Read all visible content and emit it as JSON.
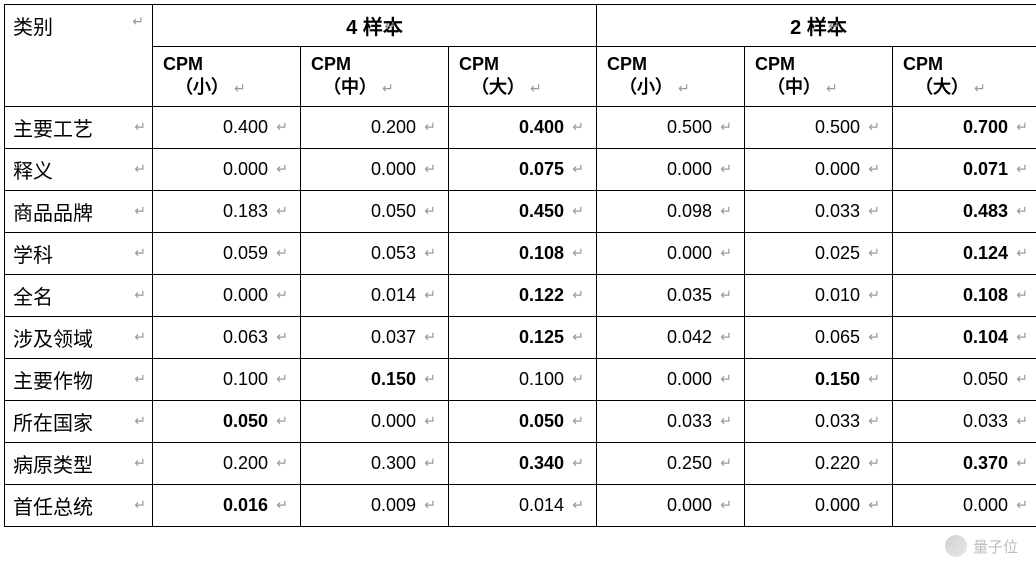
{
  "table": {
    "category_label": "类别",
    "return_glyph": "↵",
    "groups": [
      {
        "label": "4 样本",
        "columns": [
          "CPM（小）",
          "CPM（中）",
          "CPM（大）"
        ]
      },
      {
        "label": "2 样本",
        "columns": [
          "CPM（小）",
          "CPM（中）",
          "CPM（大）"
        ]
      }
    ],
    "sub_line1": "CPM",
    "sub_line2": [
      "（小）",
      "（中）",
      "（大）",
      "（小）",
      "（中）",
      "（大）"
    ],
    "rows": [
      {
        "label": "主要工艺",
        "values": [
          "0.400",
          "0.200",
          "0.400",
          "0.500",
          "0.500",
          "0.700"
        ],
        "bold": [
          false,
          false,
          true,
          false,
          false,
          true
        ]
      },
      {
        "label": "释义",
        "values": [
          "0.000",
          "0.000",
          "0.075",
          "0.000",
          "0.000",
          "0.071"
        ],
        "bold": [
          false,
          false,
          true,
          false,
          false,
          true
        ]
      },
      {
        "label": "商品品牌",
        "values": [
          "0.183",
          "0.050",
          "0.450",
          "0.098",
          "0.033",
          "0.483"
        ],
        "bold": [
          false,
          false,
          true,
          false,
          false,
          true
        ]
      },
      {
        "label": "学科",
        "values": [
          "0.059",
          "0.053",
          "0.108",
          "0.000",
          "0.025",
          "0.124"
        ],
        "bold": [
          false,
          false,
          true,
          false,
          false,
          true
        ]
      },
      {
        "label": "全名",
        "values": [
          "0.000",
          "0.014",
          "0.122",
          "0.035",
          "0.010",
          "0.108"
        ],
        "bold": [
          false,
          false,
          true,
          false,
          false,
          true
        ]
      },
      {
        "label": "涉及领域",
        "values": [
          "0.063",
          "0.037",
          "0.125",
          "0.042",
          "0.065",
          "0.104"
        ],
        "bold": [
          false,
          false,
          true,
          false,
          false,
          true
        ]
      },
      {
        "label": "主要作物",
        "values": [
          "0.100",
          "0.150",
          "0.100",
          "0.000",
          "0.150",
          "0.050"
        ],
        "bold": [
          false,
          true,
          false,
          false,
          true,
          false
        ]
      },
      {
        "label": "所在国家",
        "values": [
          "0.050",
          "0.000",
          "0.050",
          "0.033",
          "0.033",
          "0.033"
        ],
        "bold": [
          true,
          false,
          true,
          false,
          false,
          false
        ]
      },
      {
        "label": "病原类型",
        "values": [
          "0.200",
          "0.300",
          "0.340",
          "0.250",
          "0.220",
          "0.370"
        ],
        "bold": [
          false,
          false,
          true,
          false,
          false,
          true
        ]
      },
      {
        "label": "首任总统",
        "values": [
          "0.016",
          "0.009",
          "0.014",
          "0.000",
          "0.000",
          "0.000"
        ],
        "bold": [
          true,
          false,
          false,
          false,
          false,
          false
        ]
      }
    ]
  },
  "colors": {
    "border": "#000000",
    "text": "#000000",
    "return_mark": "#999999",
    "background": "#ffffff",
    "watermark": "#bdbdbd"
  },
  "typography": {
    "header_fontsize": 20,
    "data_fontsize": 18,
    "sub_fontsize": 18
  },
  "watermark": {
    "text": "量子位"
  }
}
